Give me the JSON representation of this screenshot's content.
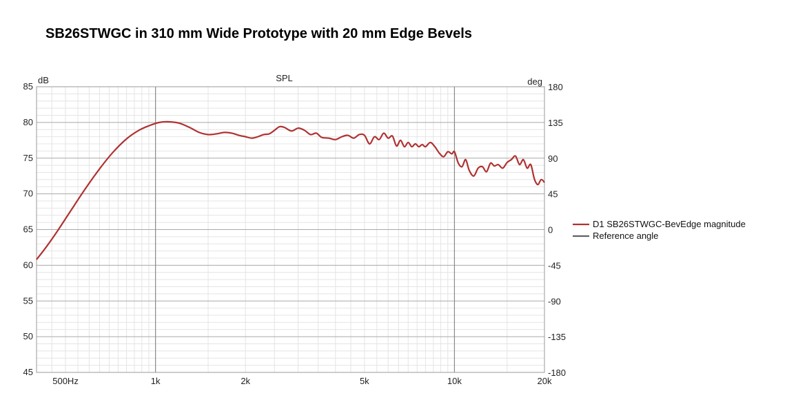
{
  "title": "SB26STWGC in 310 mm Wide Prototype with 20 mm Edge Bevels",
  "chart_data": {
    "type": "line",
    "title": "SPL",
    "ylabel_left": "dB",
    "ylabel_right": "deg",
    "x_scale": "log",
    "xlim": [
      400,
      20000
    ],
    "ylim": [
      45,
      85
    ],
    "ylim_right": [
      -180,
      180
    ],
    "x_tick_values": [
      500,
      1000,
      2000,
      5000,
      10000,
      20000
    ],
    "x_tick_labels": [
      "500Hz",
      "1k",
      "2k",
      "5k",
      "10k",
      "20k"
    ],
    "y_ticks": [
      "45",
      "50",
      "55",
      "60",
      "65",
      "70",
      "75",
      "80",
      "85"
    ],
    "y_tick_values": [
      45,
      50,
      55,
      60,
      65,
      70,
      75,
      80,
      85
    ],
    "y_right_ticks": [
      "-180",
      "-135",
      "-90",
      "-45",
      "0",
      "45",
      "90",
      "135",
      "180"
    ],
    "y_right_tick_values": [
      -180,
      -135,
      -90,
      -45,
      0,
      45,
      90,
      135,
      180
    ],
    "grid": true,
    "legend_position": "right",
    "series": [
      {
        "name": "D1 SB26STWGC-BevEdge magnitude",
        "color": "#b03030",
        "x": [
          400,
          430,
          470,
          520,
          580,
          650,
          720,
          800,
          880,
          960,
          1030,
          1100,
          1200,
          1300,
          1400,
          1500,
          1600,
          1700,
          1800,
          1900,
          2000,
          2100,
          2200,
          2300,
          2400,
          2500,
          2600,
          2700,
          2850,
          3000,
          3150,
          3300,
          3450,
          3600,
          3800,
          4000,
          4200,
          4400,
          4600,
          4800,
          5000,
          5200,
          5400,
          5600,
          5800,
          6000,
          6200,
          6400,
          6600,
          6800,
          7000,
          7200,
          7400,
          7600,
          7800,
          8000,
          8300,
          8600,
          8900,
          9200,
          9500,
          9800,
          10000,
          10300,
          10600,
          10900,
          11200,
          11600,
          12000,
          12400,
          12800,
          13200,
          13600,
          14000,
          14500,
          15000,
          15500,
          16000,
          16500,
          17000,
          17500,
          18000,
          18500,
          19000,
          19500,
          20000
        ],
        "values": [
          60.8,
          62.5,
          64.8,
          67.6,
          70.6,
          73.5,
          75.8,
          77.7,
          78.9,
          79.6,
          80.0,
          80.1,
          79.9,
          79.3,
          78.6,
          78.3,
          78.4,
          78.6,
          78.5,
          78.2,
          78.0,
          77.8,
          78.0,
          78.3,
          78.4,
          78.9,
          79.4,
          79.3,
          78.8,
          79.2,
          78.9,
          78.3,
          78.5,
          77.9,
          77.8,
          77.6,
          78.0,
          78.2,
          77.8,
          78.3,
          78.2,
          77.0,
          78.0,
          77.6,
          78.5,
          77.8,
          78.1,
          76.7,
          77.5,
          76.6,
          77.2,
          76.6,
          77.0,
          76.6,
          76.9,
          76.6,
          77.2,
          76.6,
          75.7,
          75.2,
          75.9,
          75.6,
          75.9,
          74.3,
          73.8,
          74.8,
          73.3,
          72.5,
          73.6,
          73.8,
          73.1,
          74.3,
          73.9,
          74.1,
          73.6,
          74.4,
          74.8,
          75.3,
          74.1,
          74.8,
          73.6,
          74.1,
          72.1,
          71.3,
          72.0,
          71.6
        ]
      },
      {
        "name": "Reference angle",
        "color": "#606060",
        "x": [],
        "values": []
      }
    ]
  }
}
